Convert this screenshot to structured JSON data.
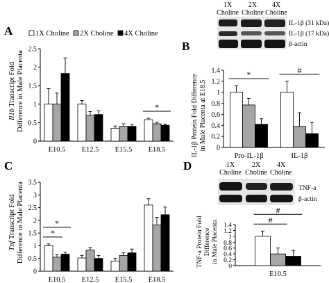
{
  "panels": {
    "A": {
      "letter": "A",
      "legend": [
        "1X Choline",
        "2X Choline",
        "4X Choline"
      ],
      "chart_data": {
        "type": "bar",
        "ylabel_gene": "Il1b",
        "ylabel_rest": " Transcript Fold",
        "ylabel_line2": "Difference in Male Placenta",
        "categories": [
          "E10.5",
          "E12.5",
          "E15.5",
          "E18.5"
        ],
        "series": [
          {
            "name": "1X Choline",
            "values": [
              1.0,
              1.0,
              0.35,
              0.58
            ],
            "errors": [
              0.42,
              0.1,
              0.06,
              0.04
            ]
          },
          {
            "name": "2X Choline",
            "values": [
              1.0,
              0.7,
              0.4,
              0.47
            ],
            "errors": [
              0.3,
              0.1,
              0.07,
              0.04
            ]
          },
          {
            "name": "4X Choline",
            "values": [
              1.83,
              0.72,
              0.4,
              0.43
            ],
            "errors": [
              0.42,
              0.1,
              0.05,
              0.03
            ]
          }
        ],
        "ylim": [
          0,
          2.5
        ],
        "yticks": [
          "0",
          "0.5",
          "1",
          "1.5",
          "2",
          "2.5"
        ],
        "annotations": [
          {
            "text": "*",
            "category": 3
          }
        ]
      }
    },
    "B": {
      "letter": "B",
      "blot_header": [
        "1X\nCholine",
        "2X\nCholine",
        "4X\nCholine"
      ],
      "blot_labels": [
        "IL-1β (31 kDa)",
        "IL-1β (17 kDa)",
        "β-actin"
      ],
      "chart_data": {
        "type": "bar",
        "ylabel_line1": "IL-1β Protein Fold Difference",
        "ylabel_line2": "in Male Placenta at E18.5",
        "categories": [
          "Pro-IL-1β",
          "IL-1β"
        ],
        "series": [
          {
            "name": "1X Choline",
            "values": [
              1.0,
              1.0
            ],
            "errors": [
              0.12,
              0.2
            ]
          },
          {
            "name": "2X Choline",
            "values": [
              0.77,
              0.38
            ],
            "errors": [
              0.12,
              0.25
            ]
          },
          {
            "name": "4X Choline",
            "values": [
              0.42,
              0.25
            ],
            "errors": [
              0.1,
              0.2
            ]
          }
        ],
        "ylim": [
          0,
          1.4
        ],
        "yticks": [
          "0",
          "0.2",
          "0.4",
          "0.6",
          "0.8",
          "1",
          "1.2",
          "1.4"
        ],
        "annotations": [
          {
            "text": "*",
            "category": 0
          },
          {
            "text": "#",
            "category": 1
          }
        ]
      }
    },
    "C": {
      "letter": "C",
      "chart_data": {
        "type": "bar",
        "ylabel_gene": "Tnf",
        "ylabel_rest": " Transcript Fold",
        "ylabel_line2": "Difference in Male Placenta",
        "categories": [
          "E10.5",
          "E12.5",
          "E15.5",
          "E18.5"
        ],
        "series": [
          {
            "name": "1X Choline",
            "values": [
              1.0,
              0.52,
              0.4,
              2.6
            ],
            "errors": [
              0.07,
              0.1,
              0.1,
              0.25
            ]
          },
          {
            "name": "2X Choline",
            "values": [
              0.55,
              0.83,
              0.62,
              1.82
            ],
            "errors": [
              0.1,
              0.1,
              0.1,
              0.3
            ]
          },
          {
            "name": "4X Choline",
            "values": [
              0.67,
              0.5,
              0.72,
              2.22
            ],
            "errors": [
              0.08,
              0.12,
              0.15,
              0.3
            ]
          }
        ],
        "ylim": [
          0,
          3.5
        ],
        "yticks": [
          "0",
          "0.5",
          "1",
          "1.5",
          "2",
          "2.5",
          "3",
          "3.5"
        ],
        "annotations": [
          {
            "text": "*",
            "category": 0,
            "span": "1-2"
          },
          {
            "text": "*",
            "category": 0,
            "span": "1-3"
          }
        ]
      }
    },
    "D": {
      "letter": "D",
      "blot_header": [
        "1X\nCholine",
        "2X\nCholine",
        "4X\nCholine"
      ],
      "blot_labels": [
        "TNF-a",
        "β-actin"
      ],
      "chart_data": {
        "type": "bar",
        "ylabel_line1": "TNF-a Protein Fold",
        "ylabel_line2": "Difference",
        "ylabel_line3": "in Male Placenta",
        "categories": [
          "E10.5"
        ],
        "series": [
          {
            "name": "1X Choline",
            "values": [
              1.0
            ],
            "errors": [
              0.18
            ]
          },
          {
            "name": "2X Choline",
            "values": [
              0.4
            ],
            "errors": [
              0.2
            ]
          },
          {
            "name": "4X Choline",
            "values": [
              0.32
            ],
            "errors": [
              0.2
            ]
          }
        ],
        "ylim": [
          0,
          1.4
        ],
        "yticks": [
          "0",
          "0.2",
          "0.4",
          "0.6",
          "0.8",
          "1",
          "1.2",
          "1.4"
        ],
        "annotations": [
          {
            "text": "#",
            "category": 0,
            "span": "1-2"
          },
          {
            "text": "#",
            "category": 0,
            "span": "1-3"
          }
        ]
      }
    }
  },
  "colors": {
    "series1": "#ffffff",
    "series2": "#a6a6a6",
    "series3": "#000000",
    "band": "#1c1c1c",
    "membrane": "#e6e6e6"
  }
}
